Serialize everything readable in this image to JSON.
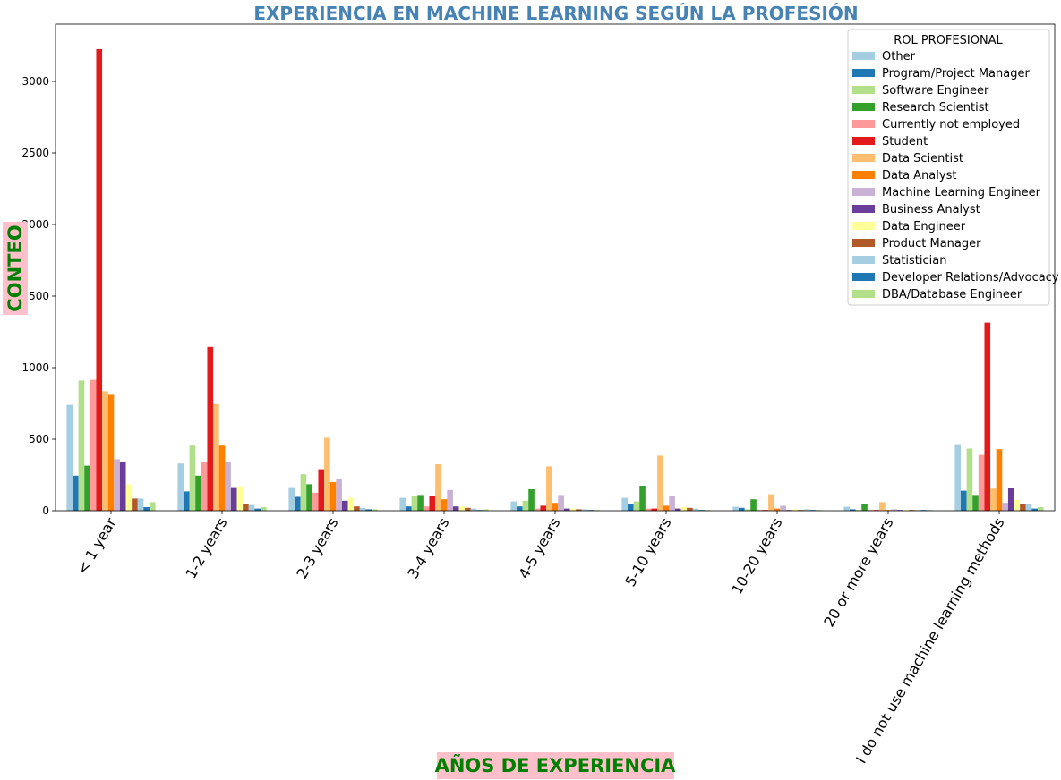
{
  "chart_data": {
    "type": "bar",
    "title": "EXPERIENCIA EN MACHINE LEARNING SEGÚN LA PROFESIÓN",
    "xlabel": "AÑOS DE EXPERIENCIA",
    "ylabel": "CONTEO",
    "ylim": [
      0,
      3400
    ],
    "yticks": [
      0,
      500,
      1000,
      1500,
      2000,
      2500,
      3000
    ],
    "grid": false,
    "legend_title": "ROL PROFESIONAL",
    "legend_position": "top-right",
    "title_color": "#4682b4",
    "label_color": "#008000",
    "label_background": "#ffc0cb",
    "categories": [
      "< 1 year",
      "1-2 years",
      "2-3 years",
      "3-4 years",
      "4-5 years",
      "5-10 years",
      "10-20 years",
      "20 or more years",
      "I do not use machine learning methods"
    ],
    "series": [
      {
        "name": "Other",
        "color": "#a6cee3",
        "values": [
          740,
          330,
          165,
          90,
          65,
          90,
          28,
          28,
          465
        ]
      },
      {
        "name": "Program/Project Manager",
        "color": "#1f78b4",
        "values": [
          245,
          135,
          97,
          30,
          30,
          45,
          20,
          10,
          140
        ]
      },
      {
        "name": "Software Engineer",
        "color": "#b2df8a",
        "values": [
          910,
          455,
          255,
          100,
          70,
          65,
          10,
          5,
          435
        ]
      },
      {
        "name": "Research Scientist",
        "color": "#33a02c",
        "values": [
          315,
          245,
          185,
          110,
          150,
          175,
          80,
          45,
          110
        ]
      },
      {
        "name": "Currently not employed",
        "color": "#fb9a99",
        "values": [
          915,
          340,
          125,
          30,
          15,
          15,
          5,
          5,
          390
        ]
      },
      {
        "name": "Student",
        "color": "#e31a1c",
        "values": [
          3225,
          1145,
          290,
          105,
          35,
          15,
          5,
          5,
          1315
        ]
      },
      {
        "name": "Data Scientist",
        "color": "#fdbf6f",
        "values": [
          835,
          745,
          510,
          325,
          310,
          385,
          115,
          60,
          155
        ]
      },
      {
        "name": "Data Analyst",
        "color": "#ff7f00",
        "values": [
          810,
          455,
          200,
          80,
          55,
          35,
          15,
          5,
          430
        ]
      },
      {
        "name": "Machine Learning Engineer",
        "color": "#cab2d6",
        "values": [
          360,
          340,
          225,
          145,
          110,
          105,
          35,
          10,
          55
        ]
      },
      {
        "name": "Business Analyst",
        "color": "#6a3d9a",
        "values": [
          340,
          165,
          70,
          30,
          15,
          15,
          5,
          5,
          160
        ]
      },
      {
        "name": "Data Engineer",
        "color": "#ffff99",
        "values": [
          185,
          170,
          90,
          30,
          15,
          25,
          10,
          5,
          75
        ]
      },
      {
        "name": "Product Manager",
        "color": "#b15928",
        "values": [
          85,
          50,
          30,
          20,
          10,
          20,
          5,
          5,
          45
        ]
      },
      {
        "name": "Statistician",
        "color": "#a6cee3",
        "values": [
          85,
          40,
          20,
          15,
          10,
          15,
          10,
          5,
          45
        ]
      },
      {
        "name": "Developer Relations/Advocacy",
        "color": "#1f78b4",
        "values": [
          25,
          15,
          10,
          5,
          5,
          5,
          5,
          5,
          15
        ]
      },
      {
        "name": "DBA/Database Engineer",
        "color": "#b2df8a",
        "values": [
          60,
          25,
          10,
          10,
          5,
          5,
          5,
          5,
          25
        ]
      }
    ]
  }
}
